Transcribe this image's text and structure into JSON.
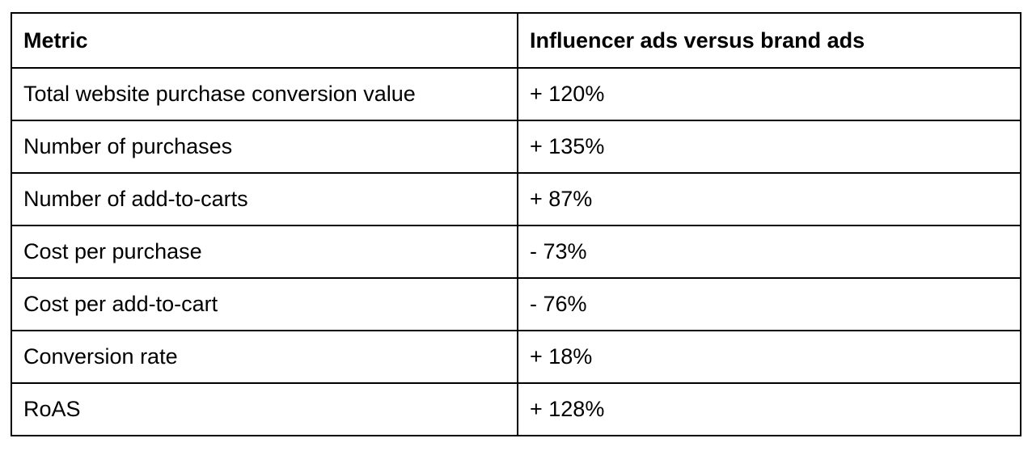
{
  "table": {
    "headers": [
      "Metric",
      "Influencer ads versus brand ads"
    ],
    "rows": [
      [
        "Total website purchase conversion value",
        "+ 120%"
      ],
      [
        "Number of purchases",
        "+ 135%"
      ],
      [
        "Number of add-to-carts",
        "+ 87%"
      ],
      [
        "Cost per purchase",
        "- 73%"
      ],
      [
        "Cost per add-to-cart",
        "- 76%"
      ],
      [
        "Conversion rate",
        "+ 18%"
      ],
      [
        "RoAS",
        "+ 128%"
      ]
    ]
  }
}
